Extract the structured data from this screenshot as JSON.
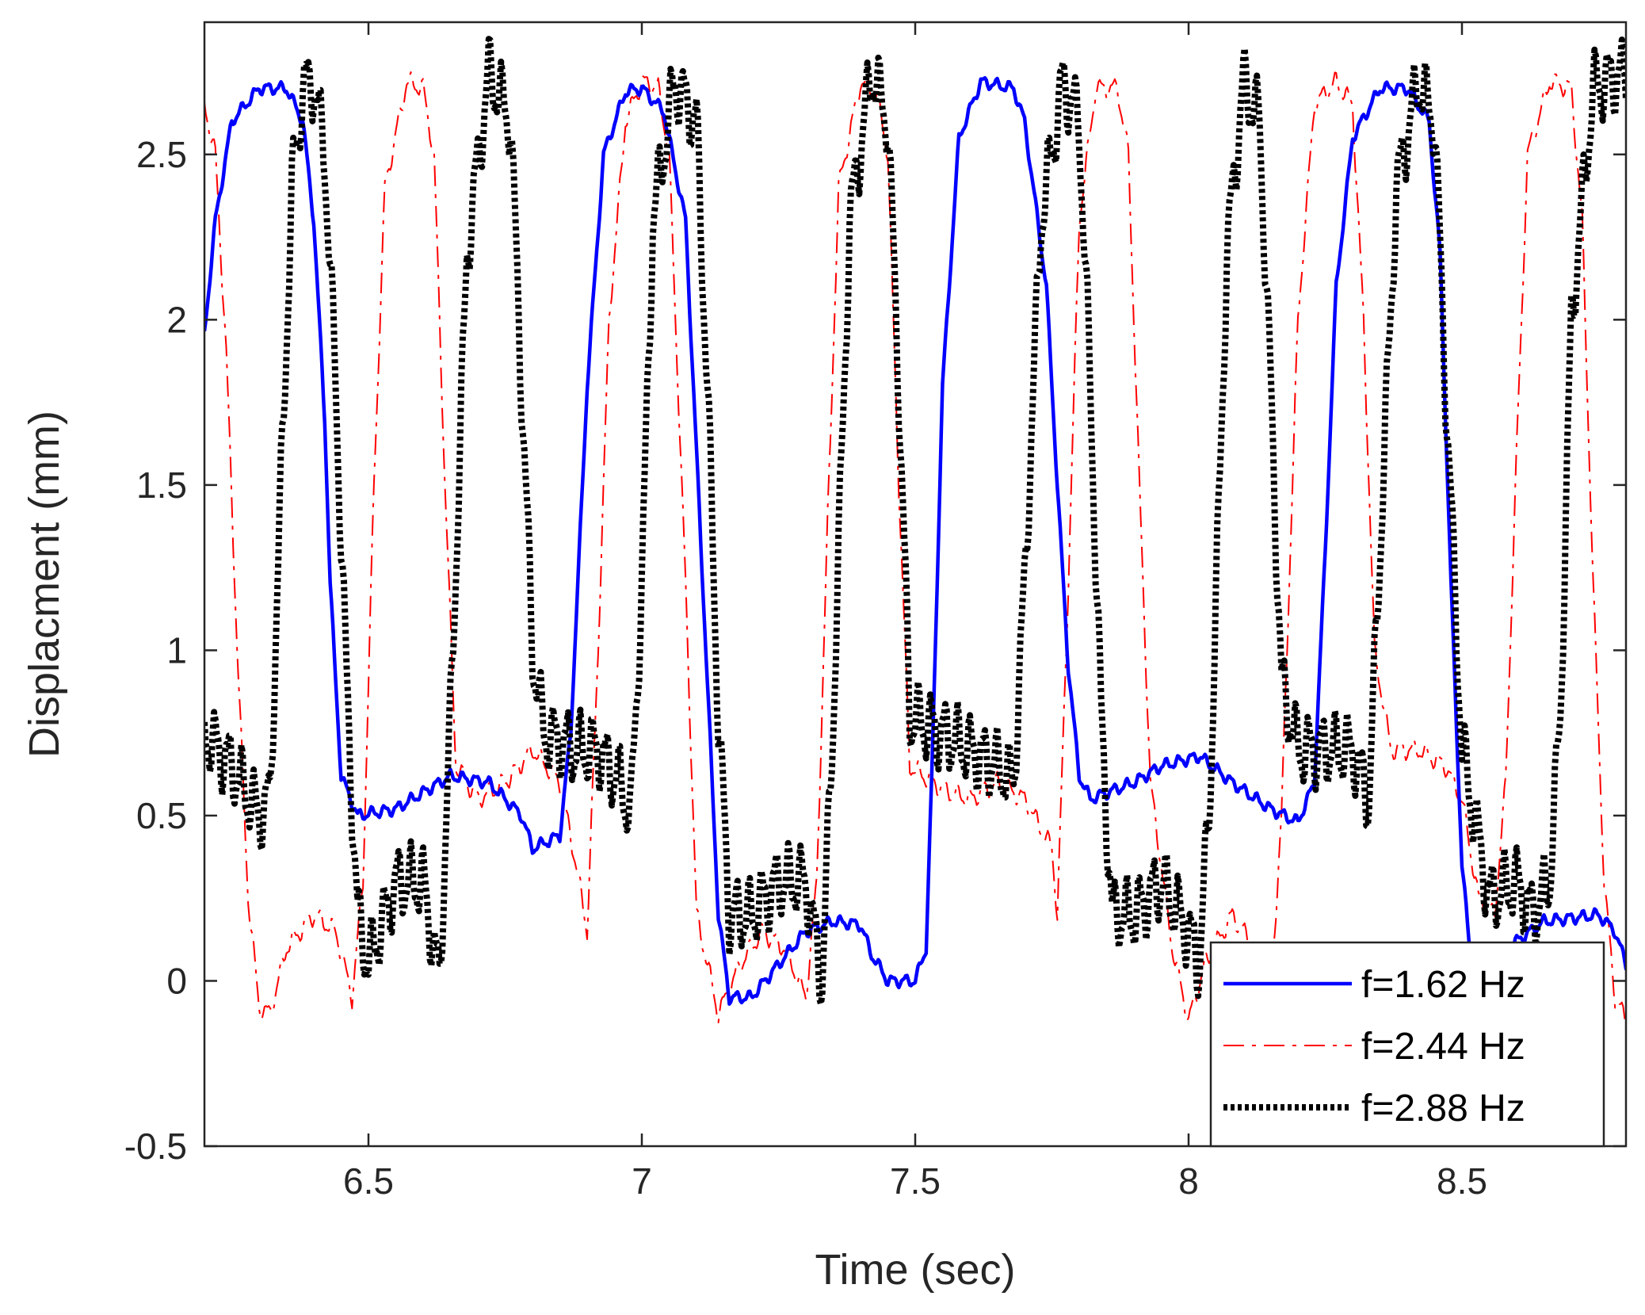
{
  "chart_data": {
    "type": "line",
    "xlabel": "Time (sec)",
    "ylabel": "Displacment (mm)",
    "xlim": [
      6.2,
      8.8
    ],
    "ylim": [
      -0.5,
      2.9
    ],
    "xticks": [
      6.5,
      7,
      7.5,
      8,
      8.5
    ],
    "yticks": [
      -0.5,
      0,
      0.5,
      1,
      1.5,
      2,
      2.5
    ],
    "grid": false,
    "legend_position": "bottom-right",
    "series": [
      {
        "name": "f=1.62 Hz",
        "color": "#0000ff",
        "style": "solid",
        "jitter": 0.03,
        "points": [
          [
            6.2,
            1.96
          ],
          [
            6.22,
            2.3
          ],
          [
            6.25,
            2.6
          ],
          [
            6.3,
            2.7
          ],
          [
            6.35,
            2.7
          ],
          [
            6.38,
            2.6
          ],
          [
            6.4,
            2.3
          ],
          [
            6.42,
            1.7
          ],
          [
            6.43,
            1.2
          ],
          [
            6.45,
            0.62
          ],
          [
            6.48,
            0.5
          ],
          [
            6.55,
            0.52
          ],
          [
            6.6,
            0.57
          ],
          [
            6.65,
            0.62
          ],
          [
            6.72,
            0.6
          ],
          [
            6.78,
            0.5
          ],
          [
            6.8,
            0.4
          ],
          [
            6.85,
            0.44
          ],
          [
            6.87,
            0.75
          ],
          [
            6.9,
            1.8
          ],
          [
            6.93,
            2.5
          ],
          [
            6.97,
            2.69
          ],
          [
            7.0,
            2.7
          ],
          [
            7.04,
            2.63
          ],
          [
            7.08,
            2.3
          ],
          [
            7.1,
            1.6
          ],
          [
            7.12,
            0.9
          ],
          [
            7.14,
            0.2
          ],
          [
            7.16,
            -0.05
          ],
          [
            7.2,
            -0.05
          ],
          [
            7.25,
            0.05
          ],
          [
            7.3,
            0.15
          ],
          [
            7.35,
            0.18
          ],
          [
            7.4,
            0.17
          ],
          [
            7.42,
            0.08
          ],
          [
            7.45,
            0.0
          ],
          [
            7.5,
            0.0
          ],
          [
            7.52,
            0.1
          ],
          [
            7.53,
            0.6
          ],
          [
            7.55,
            1.8
          ],
          [
            7.58,
            2.55
          ],
          [
            7.62,
            2.72
          ],
          [
            7.68,
            2.7
          ],
          [
            7.7,
            2.6
          ],
          [
            7.74,
            2.1
          ],
          [
            7.76,
            1.5
          ],
          [
            7.78,
            0.95
          ],
          [
            7.8,
            0.62
          ],
          [
            7.82,
            0.55
          ],
          [
            7.9,
            0.6
          ],
          [
            7.95,
            0.65
          ],
          [
            8.02,
            0.68
          ],
          [
            8.08,
            0.6
          ],
          [
            8.15,
            0.52
          ],
          [
            8.2,
            0.48
          ],
          [
            8.23,
            0.6
          ],
          [
            8.25,
            1.3
          ],
          [
            8.27,
            2.1
          ],
          [
            8.3,
            2.55
          ],
          [
            8.35,
            2.7
          ],
          [
            8.4,
            2.7
          ],
          [
            8.44,
            2.6
          ],
          [
            8.46,
            2.2
          ],
          [
            8.48,
            1.2
          ],
          [
            8.5,
            0.35
          ],
          [
            8.52,
            0.0
          ],
          [
            8.56,
            0.05
          ],
          [
            8.6,
            0.12
          ],
          [
            8.65,
            0.18
          ],
          [
            8.75,
            0.2
          ],
          [
            8.78,
            0.15
          ],
          [
            8.8,
            0.05
          ]
        ]
      },
      {
        "name": "f=2.44 Hz",
        "color": "#ff0000",
        "style": "dashdot",
        "jitter": 0.05,
        "points": [
          [
            6.2,
            2.65
          ],
          [
            6.22,
            2.5
          ],
          [
            6.24,
            1.9
          ],
          [
            6.26,
            1.0
          ],
          [
            6.28,
            0.25
          ],
          [
            6.3,
            -0.08
          ],
          [
            6.32,
            -0.1
          ],
          [
            6.35,
            0.1
          ],
          [
            6.4,
            0.2
          ],
          [
            6.44,
            0.15
          ],
          [
            6.47,
            -0.05
          ],
          [
            6.49,
            0.3
          ],
          [
            6.51,
            1.5
          ],
          [
            6.53,
            2.4
          ],
          [
            6.57,
            2.72
          ],
          [
            6.6,
            2.7
          ],
          [
            6.62,
            2.5
          ],
          [
            6.64,
            1.5
          ],
          [
            6.66,
            0.65
          ],
          [
            6.7,
            0.55
          ],
          [
            6.75,
            0.6
          ],
          [
            6.8,
            0.7
          ],
          [
            6.85,
            0.6
          ],
          [
            6.88,
            0.35
          ],
          [
            6.9,
            0.15
          ],
          [
            6.92,
            1.0
          ],
          [
            6.94,
            2.0
          ],
          [
            6.97,
            2.6
          ],
          [
            7.0,
            2.72
          ],
          [
            7.03,
            2.7
          ],
          [
            7.05,
            2.5
          ],
          [
            7.08,
            1.2
          ],
          [
            7.1,
            0.2
          ],
          [
            7.14,
            -0.1
          ],
          [
            7.18,
            0.05
          ],
          [
            7.22,
            0.15
          ],
          [
            7.26,
            0.1
          ],
          [
            7.3,
            -0.05
          ],
          [
            7.32,
            0.3
          ],
          [
            7.34,
            1.4
          ],
          [
            7.36,
            2.4
          ],
          [
            7.4,
            2.72
          ],
          [
            7.43,
            2.68
          ],
          [
            7.45,
            2.5
          ],
          [
            7.47,
            1.5
          ],
          [
            7.49,
            0.65
          ],
          [
            7.55,
            0.58
          ],
          [
            7.6,
            0.55
          ],
          [
            7.65,
            0.6
          ],
          [
            7.7,
            0.55
          ],
          [
            7.75,
            0.4
          ],
          [
            7.76,
            0.2
          ],
          [
            7.78,
            1.2
          ],
          [
            7.8,
            2.3
          ],
          [
            7.83,
            2.7
          ],
          [
            7.87,
            2.7
          ],
          [
            7.89,
            2.5
          ],
          [
            7.91,
            1.5
          ],
          [
            7.93,
            0.6
          ],
          [
            7.97,
            0.1
          ],
          [
            8.0,
            -0.12
          ],
          [
            8.03,
            0.05
          ],
          [
            8.08,
            0.2
          ],
          [
            8.12,
            0.1
          ],
          [
            8.15,
            -0.05
          ],
          [
            8.17,
            0.5
          ],
          [
            8.2,
            2.0
          ],
          [
            8.23,
            2.65
          ],
          [
            8.27,
            2.72
          ],
          [
            8.3,
            2.65
          ],
          [
            8.32,
            2.0
          ],
          [
            8.34,
            1.0
          ],
          [
            8.37,
            0.7
          ],
          [
            8.42,
            0.7
          ],
          [
            8.47,
            0.65
          ],
          [
            8.5,
            0.55
          ],
          [
            8.53,
            0.25
          ],
          [
            8.56,
            0.2
          ],
          [
            8.58,
            0.6
          ],
          [
            8.6,
            1.6
          ],
          [
            8.62,
            2.5
          ],
          [
            8.66,
            2.72
          ],
          [
            8.7,
            2.7
          ],
          [
            8.72,
            2.3
          ],
          [
            8.74,
            1.2
          ],
          [
            8.76,
            0.3
          ],
          [
            8.78,
            -0.05
          ],
          [
            8.8,
            -0.12
          ]
        ]
      },
      {
        "name": "f=2.88 Hz",
        "color": "#000000",
        "style": "dotted",
        "jitter": 0.18,
        "points": [
          [
            6.2,
            0.75
          ],
          [
            6.25,
            0.65
          ],
          [
            6.3,
            0.5
          ],
          [
            6.32,
            0.55
          ],
          [
            6.34,
            1.5
          ],
          [
            6.36,
            2.4
          ],
          [
            6.38,
            2.7
          ],
          [
            6.4,
            2.72
          ],
          [
            6.42,
            2.5
          ],
          [
            6.44,
            1.8
          ],
          [
            6.46,
            0.9
          ],
          [
            6.48,
            0.2
          ],
          [
            6.5,
            0.05
          ],
          [
            6.55,
            0.3
          ],
          [
            6.6,
            0.3
          ],
          [
            6.63,
            0.0
          ],
          [
            6.65,
            0.8
          ],
          [
            6.68,
            2.2
          ],
          [
            6.72,
            2.75
          ],
          [
            6.76,
            2.6
          ],
          [
            6.78,
            1.8
          ],
          [
            6.8,
            1.0
          ],
          [
            6.82,
            0.75
          ],
          [
            6.88,
            0.7
          ],
          [
            6.92,
            0.7
          ],
          [
            6.96,
            0.6
          ],
          [
            6.98,
            0.5
          ],
          [
            7.0,
            1.2
          ],
          [
            7.02,
            2.3
          ],
          [
            7.06,
            2.72
          ],
          [
            7.1,
            2.6
          ],
          [
            7.12,
            1.8
          ],
          [
            7.14,
            0.8
          ],
          [
            7.16,
            0.2
          ],
          [
            7.2,
            0.2
          ],
          [
            7.25,
            0.3
          ],
          [
            7.3,
            0.3
          ],
          [
            7.33,
            0.0
          ],
          [
            7.35,
            0.8
          ],
          [
            7.38,
            2.3
          ],
          [
            7.42,
            2.75
          ],
          [
            7.45,
            2.6
          ],
          [
            7.47,
            1.8
          ],
          [
            7.49,
            0.8
          ],
          [
            7.55,
            0.75
          ],
          [
            7.6,
            0.7
          ],
          [
            7.65,
            0.65
          ],
          [
            7.68,
            0.6
          ],
          [
            7.7,
            1.2
          ],
          [
            7.73,
            2.3
          ],
          [
            7.77,
            2.72
          ],
          [
            7.8,
            2.6
          ],
          [
            7.82,
            1.8
          ],
          [
            7.84,
            0.8
          ],
          [
            7.86,
            0.2
          ],
          [
            7.9,
            0.2
          ],
          [
            7.95,
            0.3
          ],
          [
            8.0,
            0.15
          ],
          [
            8.02,
            0.05
          ],
          [
            8.04,
            0.6
          ],
          [
            8.07,
            2.2
          ],
          [
            8.1,
            2.72
          ],
          [
            8.13,
            2.6
          ],
          [
            8.15,
            1.8
          ],
          [
            8.17,
            0.9
          ],
          [
            8.2,
            0.7
          ],
          [
            8.25,
            0.7
          ],
          [
            8.3,
            0.7
          ],
          [
            8.33,
            0.55
          ],
          [
            8.35,
            1.3
          ],
          [
            8.38,
            2.4
          ],
          [
            8.42,
            2.72
          ],
          [
            8.45,
            2.6
          ],
          [
            8.47,
            1.8
          ],
          [
            8.5,
            0.7
          ],
          [
            8.55,
            0.25
          ],
          [
            8.6,
            0.3
          ],
          [
            8.63,
            0.2
          ],
          [
            8.66,
            0.3
          ],
          [
            8.68,
            0.8
          ],
          [
            8.7,
            2.0
          ],
          [
            8.74,
            2.7
          ],
          [
            8.8,
            2.75
          ]
        ]
      }
    ]
  }
}
